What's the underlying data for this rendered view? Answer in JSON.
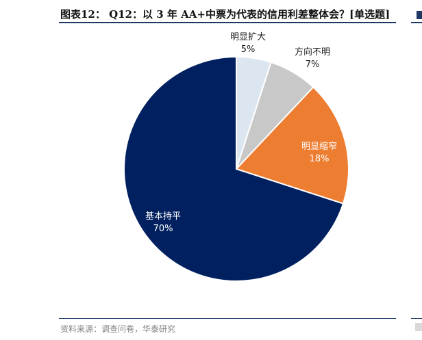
{
  "header": {
    "title": "图表12： Q12：以 3 年 AA+中票为代表的信用利差整体会？[单选题]"
  },
  "footer": {
    "source": "资料来源：调查问卷，华泰研究"
  },
  "chart_data": {
    "type": "pie",
    "title": "",
    "slices": [
      {
        "name": "明显扩大",
        "value": 5,
        "label": "5%",
        "color": "#dce6f0",
        "text_color": "#1a1a1a"
      },
      {
        "name": "方向不明",
        "value": 7,
        "label": "7%",
        "color": "#c8c8c8",
        "text_color": "#1a1a1a"
      },
      {
        "name": "明显缩窄",
        "value": 18,
        "label": "18%",
        "color": "#ed7d31",
        "text_color": "#ffffff"
      },
      {
        "name": "基本持平",
        "value": 70,
        "label": "70%",
        "color": "#002060",
        "text_color": "#ffffff"
      }
    ]
  }
}
